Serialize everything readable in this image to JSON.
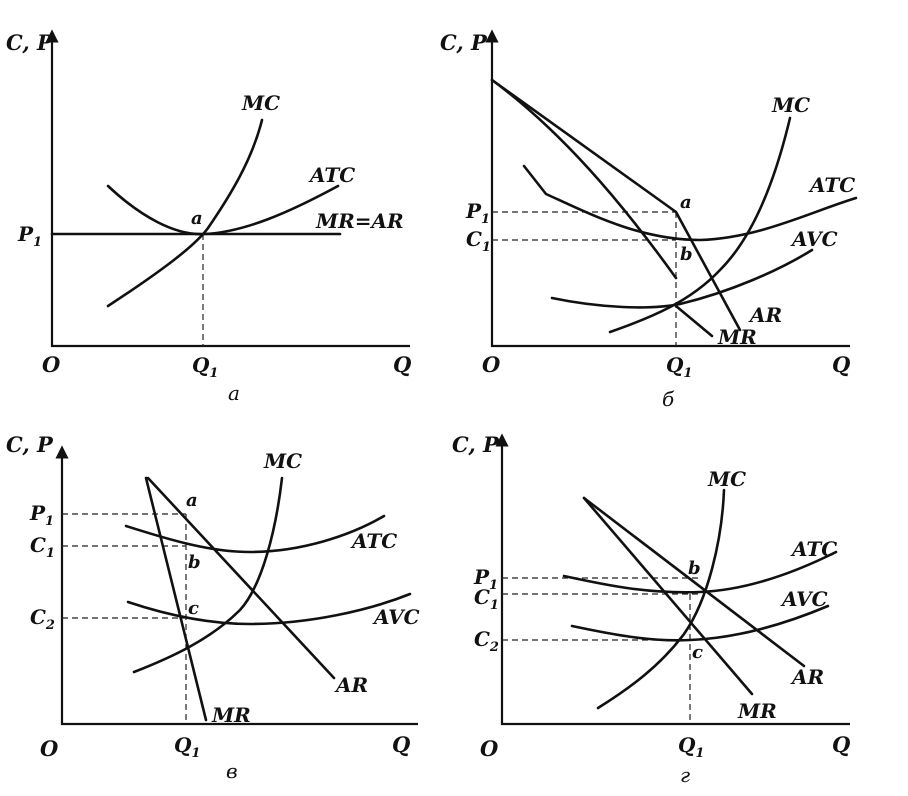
{
  "panels": [
    {
      "caption": "а",
      "y_axis": "C, P",
      "x_axis": "Q",
      "origin": "O",
      "q1": "Q",
      "p1": "P",
      "curves": {
        "mc": "MC",
        "atc": "ATC",
        "mr_ar": "MR=AR"
      },
      "points": {
        "a": "a"
      }
    },
    {
      "caption": "б",
      "y_axis": "C, P",
      "x_axis": "Q",
      "origin": "O",
      "q1": "Q",
      "p1": "P",
      "c1": "C",
      "curves": {
        "mc": "MC",
        "atc": "ATC",
        "avc": "AVC",
        "ar": "AR",
        "mr": "MR"
      },
      "points": {
        "a": "a",
        "b": "b"
      }
    },
    {
      "caption": "в",
      "y_axis": "C, P",
      "x_axis": "Q",
      "origin": "O",
      "q1": "Q",
      "p1": "P",
      "c1": "C",
      "c2": "C",
      "curves": {
        "mc": "MC",
        "atc": "ATC",
        "avc": "AVC",
        "ar": "AR",
        "mr": "MR"
      },
      "points": {
        "a": "a",
        "b": "b",
        "c": "c"
      }
    },
    {
      "caption": "г",
      "y_axis": "C, P",
      "x_axis": "Q",
      "origin": "O",
      "q1": "Q",
      "p1": "P",
      "c1": "C",
      "c2": "C",
      "curves": {
        "mc": "MC",
        "atc": "ATC",
        "avc": "AVC",
        "ar": "AR",
        "mr": "MR"
      },
      "points": {
        "b": "b",
        "c": "c"
      }
    }
  ],
  "subscripts": {
    "one": "1",
    "two": "2"
  }
}
